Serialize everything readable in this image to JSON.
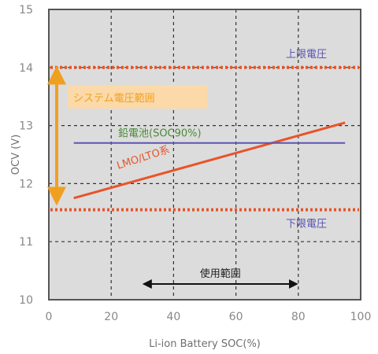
{
  "chart_data": {
    "type": "line",
    "title": "",
    "xlabel": "Li-ion Battery SOC(%)",
    "ylabel": "OCV (V)",
    "xlim": [
      0,
      100
    ],
    "ylim": [
      10,
      15
    ],
    "xticks": [
      0,
      20,
      40,
      60,
      80,
      100
    ],
    "yticks": [
      10,
      11,
      12,
      13,
      14,
      15
    ],
    "grid": true,
    "series": [
      {
        "name": "LMO/LTO系",
        "x": [
          8,
          95
        ],
        "y": [
          11.75,
          13.05
        ],
        "color": "#e8542a"
      },
      {
        "name": "鉛電池(SOC90%)",
        "x": [
          8,
          95
        ],
        "y": [
          12.7,
          12.7
        ],
        "color": "#5b55b5"
      }
    ],
    "hlines": [
      {
        "label": "上限電圧",
        "y": 14.0,
        "color": "#e8542a"
      },
      {
        "label": "下限電圧",
        "y": 11.55,
        "color": "#e8542a"
      }
    ],
    "system_range": {
      "label": "システム電圧範囲",
      "from": 11.7,
      "to": 13.95,
      "color": "#f0a020"
    },
    "use_range": {
      "label": "使用範囲",
      "from": 30,
      "to": 80
    },
    "colors": {
      "plot_bg": "#dcdcdc",
      "grid": "#333333",
      "axis": "#555555",
      "range_box": "#fbd9a8"
    }
  }
}
